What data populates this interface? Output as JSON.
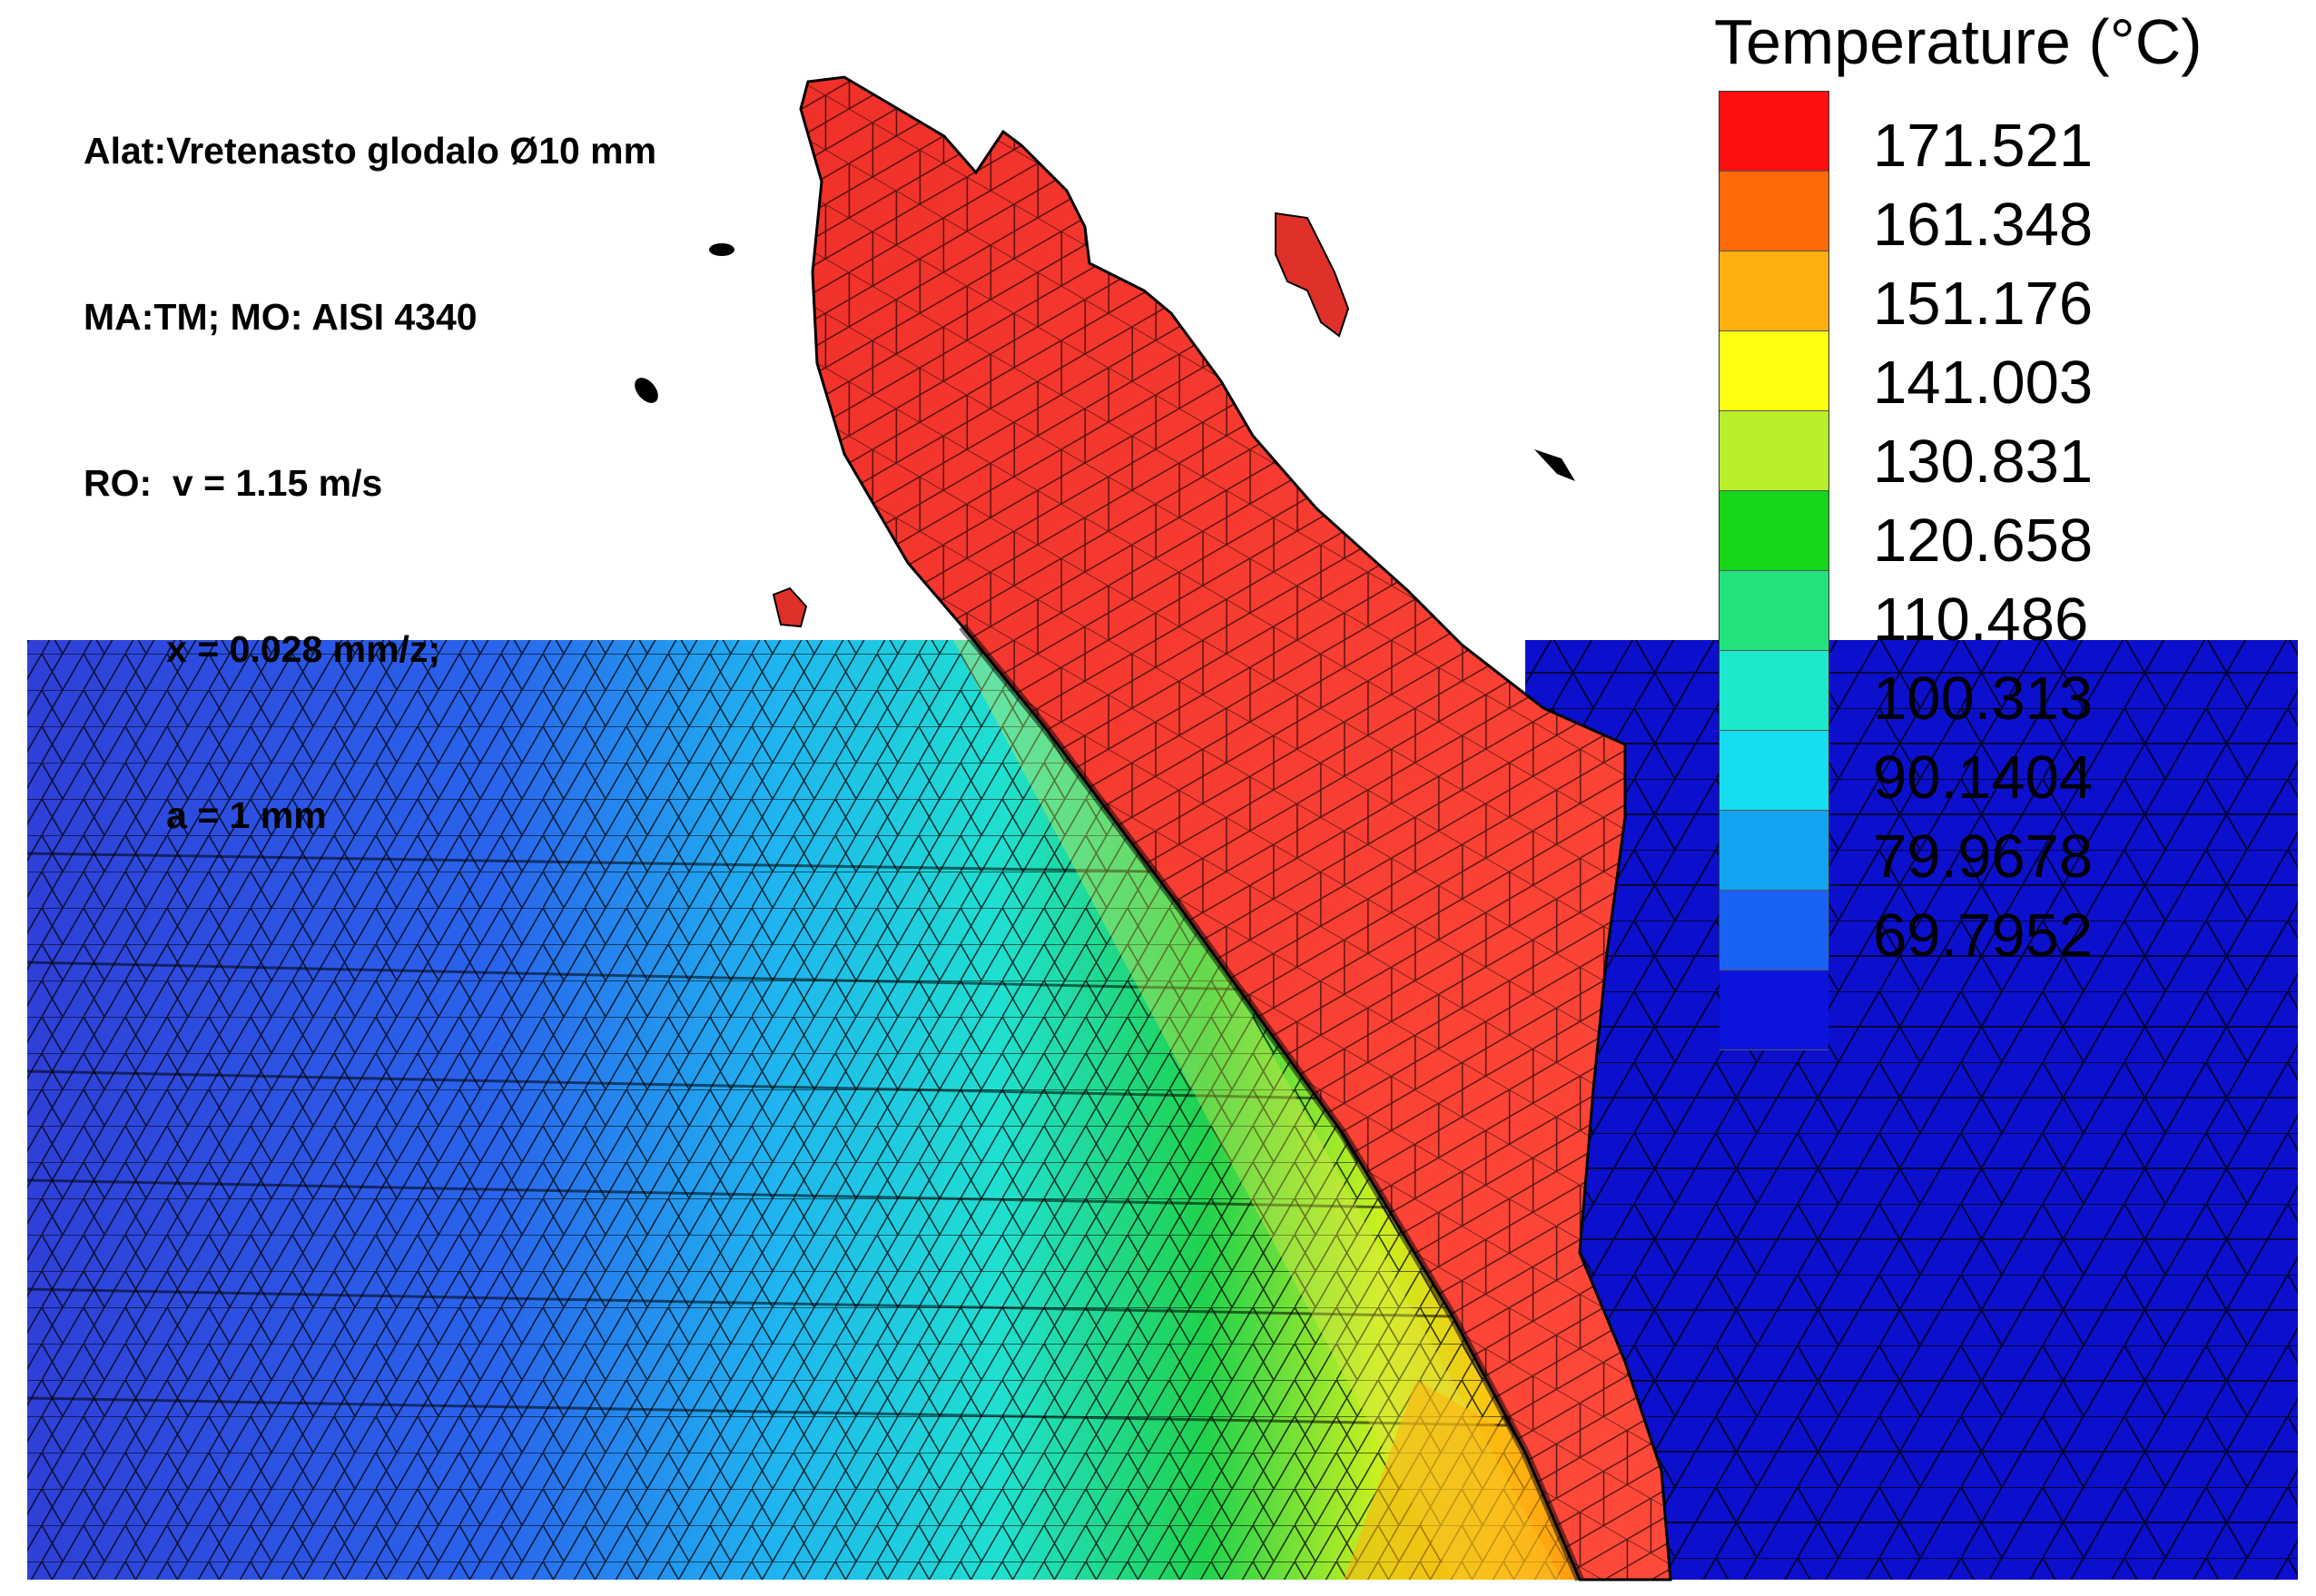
{
  "info": {
    "line1": "Alat:Vretenasto glodalo Ø10 mm",
    "line2": "MA:TM; MO: AISI 4340",
    "line3": "RO:  v = 1.15 m/s",
    "line4": "        x = 0.028 mm/z;",
    "line5": "        a = 1 mm"
  },
  "legend": {
    "title": "Temperature (°C)",
    "colors": [
      "#ff1010",
      "#ff6a08",
      "#ffb010",
      "#ffff14",
      "#b8ee2a",
      "#16d61a",
      "#22e27c",
      "#1ee8cc",
      "#16ddf0",
      "#12a4f0",
      "#1a62f6",
      "#0c14dc"
    ],
    "ticks": [
      "171.521",
      "161.348",
      "151.176",
      "141.003",
      "130.831",
      "120.658",
      "110.486",
      "100.313",
      "90.1404",
      "79.9678",
      "69.7952"
    ]
  },
  "scene": {
    "workpiece_cold_color": "#1818cc",
    "workpiece_right_color": "#0c10cc",
    "tool_color": "#f23a30",
    "mesh_color": "#000000"
  }
}
